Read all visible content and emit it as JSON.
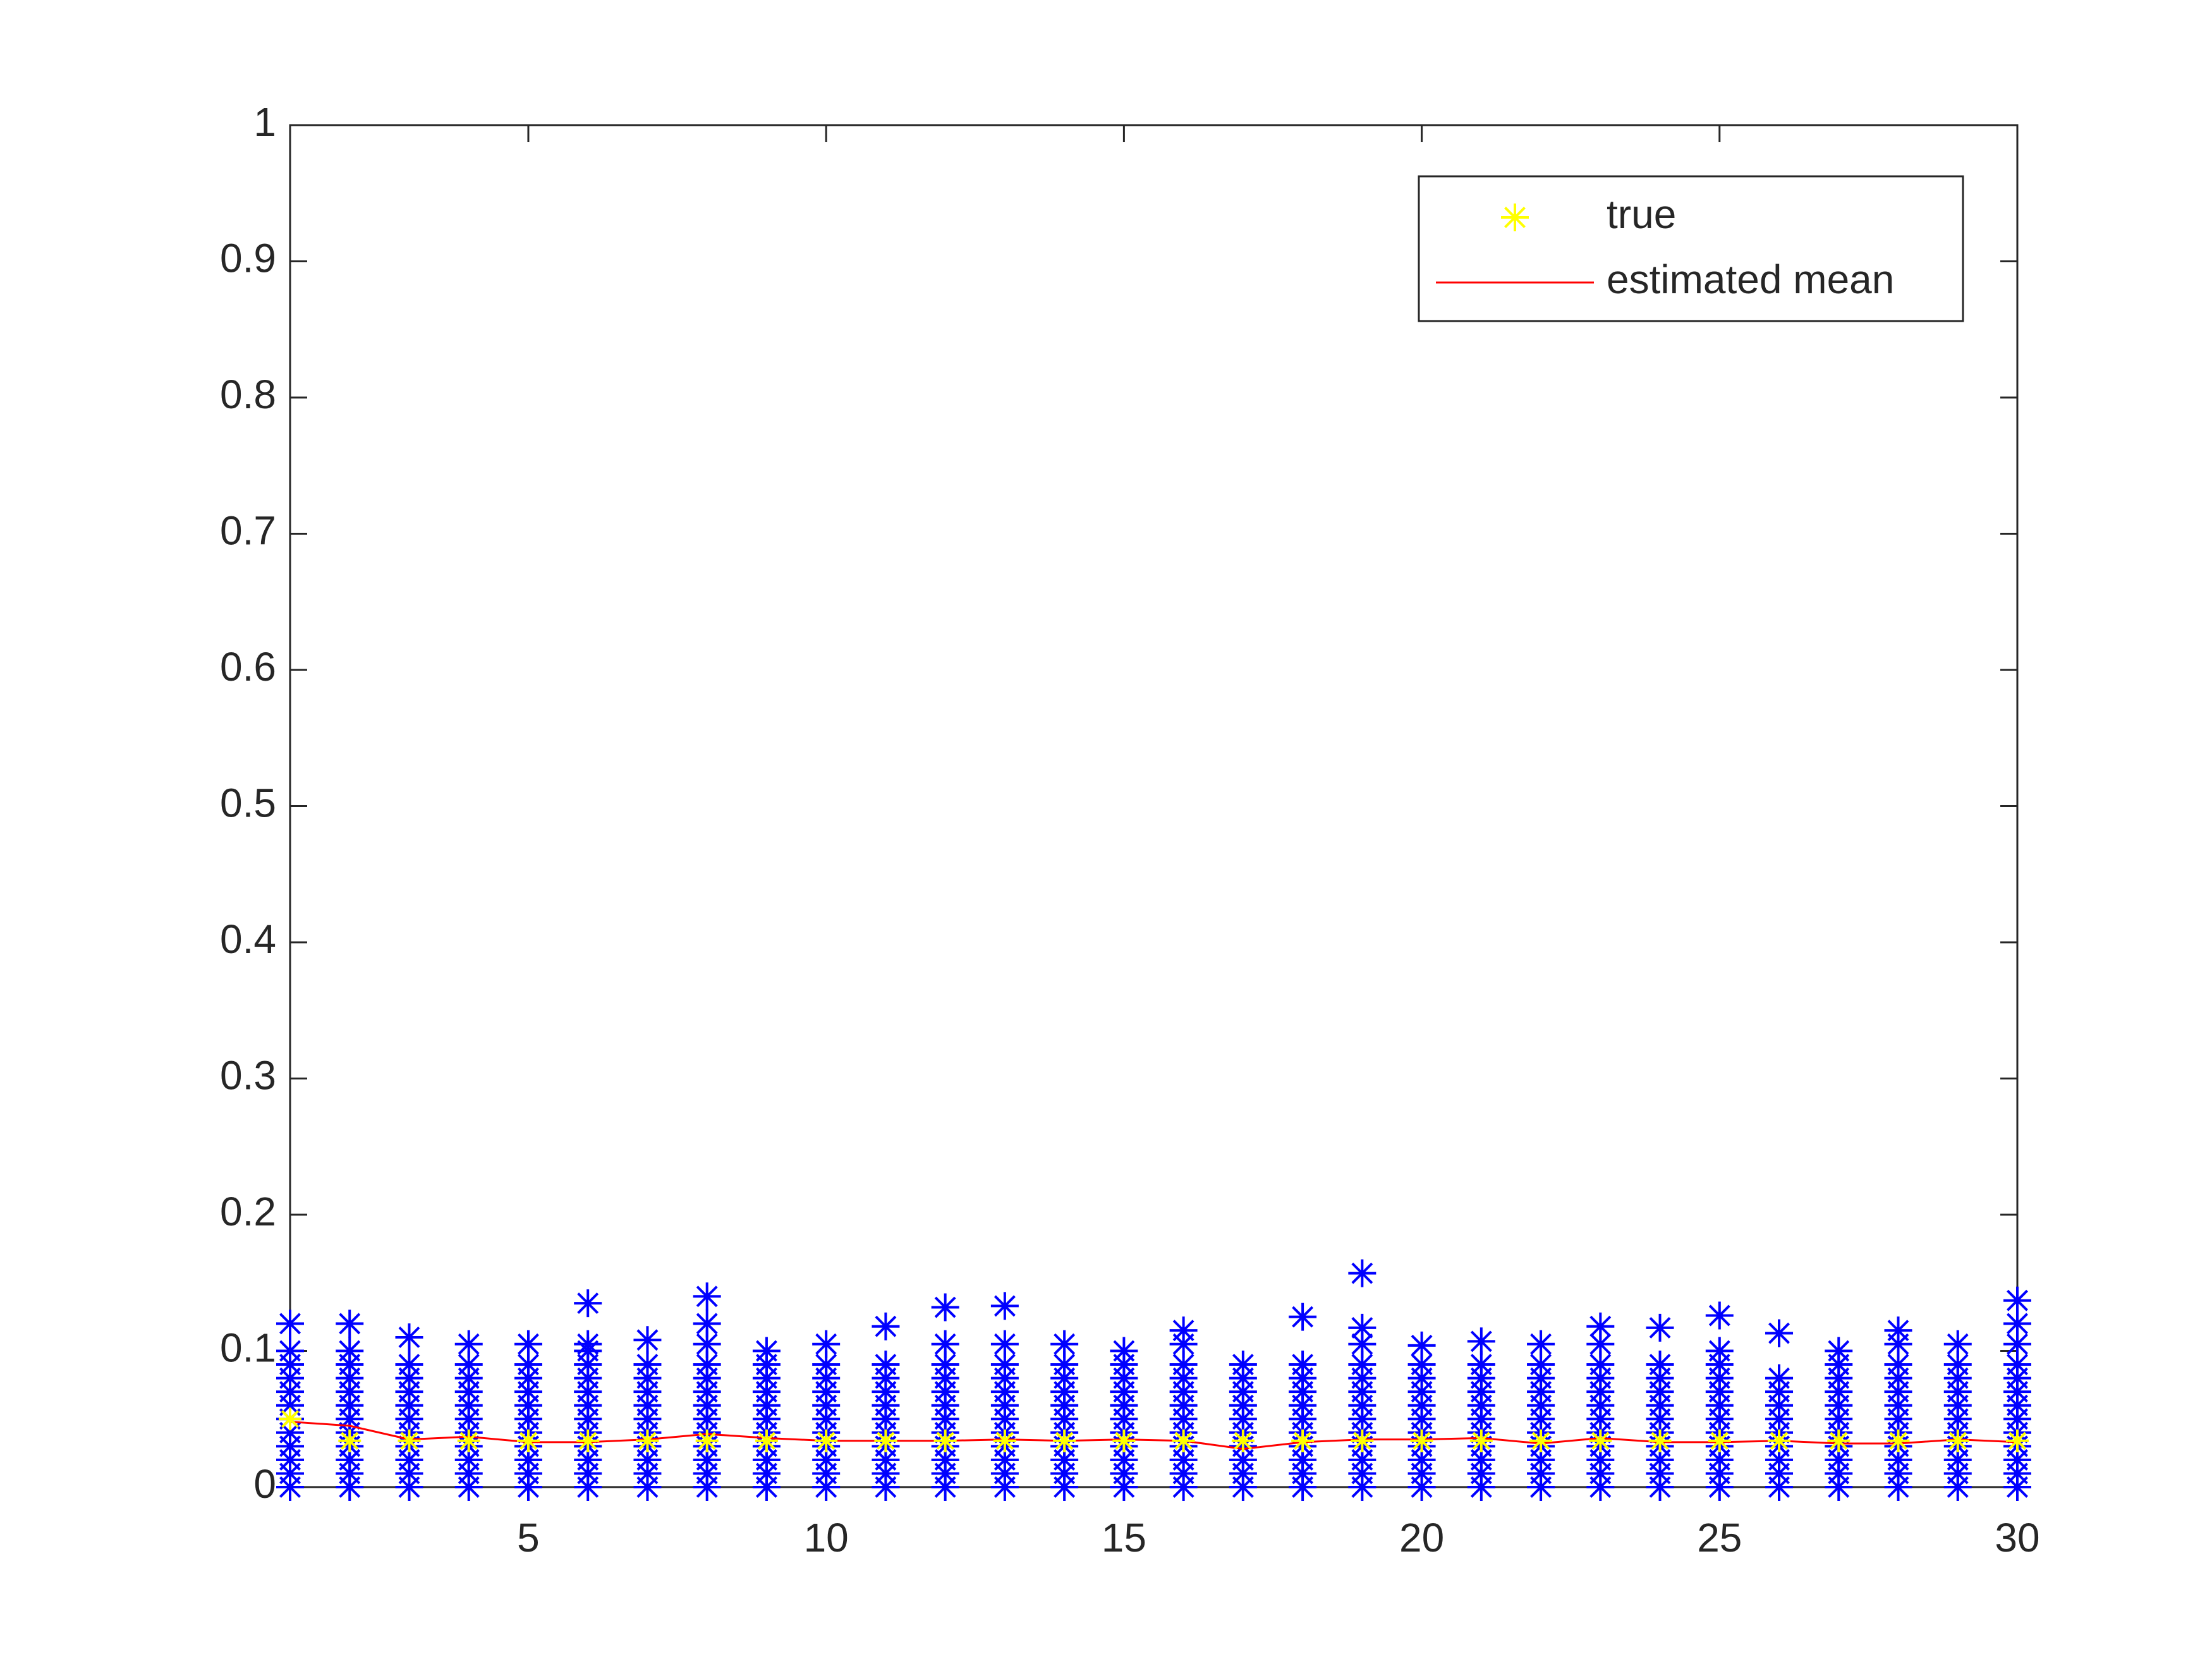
{
  "chart_data": {
    "type": "scatter",
    "legend": "upper right",
    "x": [
      1,
      2,
      3,
      4,
      5,
      6,
      7,
      8,
      9,
      10,
      11,
      12,
      13,
      14,
      15,
      16,
      17,
      18,
      19,
      20,
      21,
      22,
      23,
      24,
      25,
      26,
      27,
      28,
      29,
      30
    ],
    "xlim": [
      1,
      30
    ],
    "xticks": [
      5,
      10,
      15,
      20,
      25,
      30
    ],
    "ylim": [
      0,
      1
    ],
    "yticks": [
      0,
      0.1,
      0.2,
      0.3,
      0.4,
      0.5,
      0.6,
      0.7,
      0.8,
      0.9,
      1
    ],
    "series": [
      {
        "type": "scatter",
        "color": "#0000ff",
        "values": [
          [
            0,
            0.01,
            0.02,
            0.03,
            0.04,
            0.05,
            0.06,
            0.07,
            0.08,
            0.09,
            0.1,
            0.12
          ],
          [
            0,
            0.01,
            0.02,
            0.03,
            0.04,
            0.05,
            0.06,
            0.07,
            0.08,
            0.09,
            0.1,
            0.12
          ],
          [
            0,
            0.01,
            0.02,
            0.03,
            0.04,
            0.05,
            0.06,
            0.07,
            0.08,
            0.09,
            0.11
          ],
          [
            0,
            0.01,
            0.02,
            0.03,
            0.04,
            0.05,
            0.06,
            0.07,
            0.08,
            0.09,
            0.105
          ],
          [
            0,
            0.01,
            0.02,
            0.03,
            0.04,
            0.05,
            0.06,
            0.07,
            0.08,
            0.09,
            0.105
          ],
          [
            0,
            0.01,
            0.02,
            0.03,
            0.04,
            0.05,
            0.06,
            0.07,
            0.08,
            0.09,
            0.1,
            0.105,
            0.135
          ],
          [
            0,
            0.01,
            0.02,
            0.03,
            0.04,
            0.05,
            0.06,
            0.07,
            0.08,
            0.09,
            0.108
          ],
          [
            0,
            0.01,
            0.02,
            0.03,
            0.04,
            0.05,
            0.06,
            0.07,
            0.08,
            0.09,
            0.105,
            0.12,
            0.14
          ],
          [
            0,
            0.01,
            0.02,
            0.03,
            0.04,
            0.05,
            0.06,
            0.07,
            0.08,
            0.09,
            0.1
          ],
          [
            0,
            0.01,
            0.02,
            0.03,
            0.04,
            0.05,
            0.06,
            0.07,
            0.08,
            0.09,
            0.105
          ],
          [
            0,
            0.01,
            0.02,
            0.03,
            0.04,
            0.05,
            0.06,
            0.07,
            0.08,
            0.09,
            0.118
          ],
          [
            0,
            0.01,
            0.02,
            0.03,
            0.04,
            0.05,
            0.06,
            0.07,
            0.08,
            0.09,
            0.105,
            0.132
          ],
          [
            0,
            0.01,
            0.02,
            0.03,
            0.04,
            0.05,
            0.06,
            0.07,
            0.08,
            0.09,
            0.105,
            0.133
          ],
          [
            0,
            0.01,
            0.02,
            0.03,
            0.04,
            0.05,
            0.06,
            0.07,
            0.08,
            0.09,
            0.105
          ],
          [
            0,
            0.01,
            0.02,
            0.03,
            0.04,
            0.05,
            0.06,
            0.07,
            0.08,
            0.09,
            0.1
          ],
          [
            0,
            0.01,
            0.02,
            0.03,
            0.04,
            0.05,
            0.06,
            0.07,
            0.08,
            0.09,
            0.105,
            0.115
          ],
          [
            0,
            0.01,
            0.02,
            0.03,
            0.04,
            0.05,
            0.06,
            0.07,
            0.08,
            0.09
          ],
          [
            0,
            0.01,
            0.02,
            0.03,
            0.04,
            0.05,
            0.06,
            0.07,
            0.08,
            0.09,
            0.125
          ],
          [
            0,
            0.01,
            0.02,
            0.03,
            0.04,
            0.05,
            0.06,
            0.07,
            0.08,
            0.09,
            0.105,
            0.117,
            0.157
          ],
          [
            0,
            0.01,
            0.02,
            0.03,
            0.04,
            0.05,
            0.06,
            0.07,
            0.08,
            0.09,
            0.104
          ],
          [
            0,
            0.01,
            0.02,
            0.03,
            0.04,
            0.05,
            0.06,
            0.07,
            0.08,
            0.09,
            0.107
          ],
          [
            0,
            0.01,
            0.02,
            0.03,
            0.04,
            0.05,
            0.06,
            0.07,
            0.08,
            0.09,
            0.105
          ],
          [
            0,
            0.01,
            0.02,
            0.03,
            0.04,
            0.05,
            0.06,
            0.07,
            0.08,
            0.09,
            0.105,
            0.118
          ],
          [
            0,
            0.01,
            0.02,
            0.03,
            0.04,
            0.05,
            0.06,
            0.07,
            0.08,
            0.09,
            0.117
          ],
          [
            0,
            0.01,
            0.02,
            0.03,
            0.04,
            0.05,
            0.06,
            0.07,
            0.08,
            0.09,
            0.1,
            0.126
          ],
          [
            0,
            0.01,
            0.02,
            0.03,
            0.04,
            0.05,
            0.06,
            0.07,
            0.08,
            0.113
          ],
          [
            0,
            0.01,
            0.02,
            0.03,
            0.04,
            0.05,
            0.06,
            0.07,
            0.08,
            0.09,
            0.1
          ],
          [
            0,
            0.01,
            0.02,
            0.03,
            0.04,
            0.05,
            0.06,
            0.07,
            0.08,
            0.09,
            0.105,
            0.115
          ],
          [
            0,
            0.01,
            0.02,
            0.03,
            0.04,
            0.05,
            0.06,
            0.07,
            0.08,
            0.09,
            0.105
          ],
          [
            0,
            0.01,
            0.02,
            0.03,
            0.04,
            0.05,
            0.06,
            0.07,
            0.08,
            0.09,
            0.105,
            0.12,
            0.137
          ]
        ]
      },
      {
        "type": "line",
        "name": "estimated mean",
        "color": "#ff0000",
        "values": [
          0.048,
          0.045,
          0.035,
          0.037,
          0.033,
          0.033,
          0.035,
          0.039,
          0.036,
          0.034,
          0.034,
          0.034,
          0.035,
          0.034,
          0.035,
          0.034,
          0.028,
          0.033,
          0.035,
          0.035,
          0.036,
          0.032,
          0.036,
          0.033,
          0.033,
          0.034,
          0.032,
          0.032,
          0.035,
          0.033
        ]
      },
      {
        "type": "scatter",
        "name": "true",
        "color": "#ffff00",
        "values": [
          0.05,
          0.034,
          0.034,
          0.034,
          0.034,
          0.034,
          0.034,
          0.034,
          0.034,
          0.034,
          0.034,
          0.034,
          0.034,
          0.034,
          0.034,
          0.034,
          0.034,
          0.034,
          0.034,
          0.034,
          0.034,
          0.034,
          0.034,
          0.034,
          0.034,
          0.034,
          0.034,
          0.034,
          0.034,
          0.034
        ]
      }
    ]
  }
}
